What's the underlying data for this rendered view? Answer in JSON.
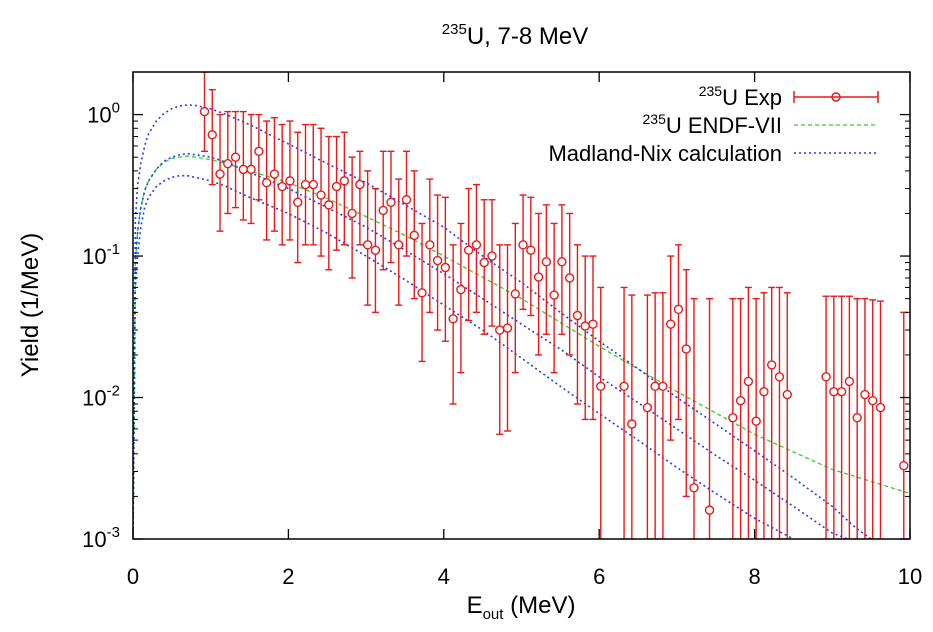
{
  "chart_data": {
    "type": "scatter",
    "title": {
      "sup": "235",
      "main": "U, 7-8 MeV"
    },
    "xlabel": {
      "main": "E",
      "sub": "out",
      "unit": " (MeV)"
    },
    "ylabel": "Yield (1/MeV)",
    "xlim": [
      0,
      10
    ],
    "ylim": [
      0.001,
      2
    ],
    "yscale": "log",
    "grid": false,
    "legend_position": "top-right",
    "x_ticks": [
      {
        "value": 0,
        "label": "0"
      },
      {
        "value": 2,
        "label": "2"
      },
      {
        "value": 4,
        "label": "4"
      },
      {
        "value": 6,
        "label": "6"
      },
      {
        "value": 8,
        "label": "8"
      },
      {
        "value": 10,
        "label": "10"
      }
    ],
    "y_ticks": [
      {
        "value": 1,
        "base": "10",
        "exp": "0"
      },
      {
        "value": 0.1,
        "base": "10",
        "exp": "-1"
      },
      {
        "value": 0.01,
        "base": "10",
        "exp": "-2"
      },
      {
        "value": 0.001,
        "base": "10",
        "exp": "-3"
      }
    ],
    "series": [
      {
        "name": {
          "sup": "235",
          "main": "U Exp"
        },
        "style": "points-errorbars",
        "color": "#e8191a",
        "points": [
          [
            0.92,
            1.05,
            0.55,
            2.0
          ],
          [
            1.02,
            0.72,
            0.32,
            1.5
          ],
          [
            1.12,
            0.38,
            0.15,
            1.0
          ],
          [
            1.22,
            0.45,
            0.2,
            1.05
          ],
          [
            1.32,
            0.5,
            0.22,
            1.05
          ],
          [
            1.42,
            0.41,
            0.18,
            1.05
          ],
          [
            1.52,
            0.41,
            0.17,
            1.0
          ],
          [
            1.62,
            0.55,
            0.25,
            1.0
          ],
          [
            1.72,
            0.33,
            0.13,
            0.9
          ],
          [
            1.82,
            0.38,
            0.15,
            0.95
          ],
          [
            1.92,
            0.31,
            0.12,
            0.85
          ],
          [
            2.02,
            0.34,
            0.13,
            0.9
          ],
          [
            2.12,
            0.24,
            0.09,
            0.75
          ],
          [
            2.22,
            0.32,
            0.12,
            0.85
          ],
          [
            2.32,
            0.32,
            0.12,
            0.85
          ],
          [
            2.42,
            0.27,
            0.1,
            0.8
          ],
          [
            2.52,
            0.23,
            0.08,
            0.7
          ],
          [
            2.62,
            0.31,
            0.11,
            0.7
          ],
          [
            2.72,
            0.34,
            0.12,
            0.75
          ],
          [
            2.82,
            0.2,
            0.07,
            0.5
          ],
          [
            2.92,
            0.32,
            0.12,
            0.55
          ],
          [
            3.02,
            0.12,
            0.045,
            0.4
          ],
          [
            3.12,
            0.11,
            0.04,
            0.3
          ],
          [
            3.22,
            0.21,
            0.08,
            0.55
          ],
          [
            3.32,
            0.24,
            0.09,
            0.55
          ],
          [
            3.42,
            0.12,
            0.045,
            0.35
          ],
          [
            3.52,
            0.25,
            0.1,
            0.55
          ],
          [
            3.62,
            0.14,
            0.05,
            0.4
          ],
          [
            3.72,
            0.055,
            0.018,
            0.17
          ],
          [
            3.82,
            0.12,
            0.04,
            0.35
          ],
          [
            3.92,
            0.093,
            0.03,
            0.27
          ],
          [
            4.02,
            0.083,
            0.025,
            0.26
          ],
          [
            4.12,
            0.036,
            0.009,
            0.12
          ],
          [
            4.22,
            0.058,
            0.015,
            0.17
          ],
          [
            4.32,
            0.11,
            0.035,
            0.3
          ],
          [
            4.42,
            0.12,
            0.04,
            0.32
          ],
          [
            4.52,
            0.09,
            0.028,
            0.25
          ],
          [
            4.62,
            0.1,
            0.032,
            0.25
          ],
          [
            4.72,
            0.03,
            0.0055,
            0.12
          ],
          [
            4.82,
            0.031,
            0.0058,
            0.12
          ],
          [
            4.92,
            0.054,
            0.015,
            0.17
          ],
          [
            5.02,
            0.12,
            0.042,
            0.27
          ],
          [
            5.12,
            0.11,
            0.038,
            0.26
          ],
          [
            5.22,
            0.071,
            0.02,
            0.2
          ],
          [
            5.32,
            0.091,
            0.028,
            0.23
          ],
          [
            5.42,
            0.053,
            0.015,
            0.17
          ],
          [
            5.52,
            0.091,
            0.028,
            0.23
          ],
          [
            5.62,
            0.07,
            0.02,
            0.2
          ],
          [
            5.72,
            0.038,
            0.009,
            0.12
          ],
          [
            5.82,
            0.032,
            0.007,
            0.1
          ],
          [
            5.92,
            0.033,
            0.007,
            0.1
          ],
          [
            6.02,
            0.012,
            0.001,
            0.06
          ],
          [
            6.32,
            0.012,
            0.001,
            0.06
          ],
          [
            6.42,
            0.0065,
            0.001,
            0.053
          ],
          [
            6.62,
            0.0085,
            0.001,
            0.053
          ],
          [
            6.72,
            0.012,
            0.001,
            0.055
          ],
          [
            6.82,
            0.012,
            0.001,
            0.055
          ],
          [
            6.92,
            0.033,
            0.005,
            0.1
          ],
          [
            7.02,
            0.042,
            0.007,
            0.12
          ],
          [
            7.12,
            0.022,
            0.002,
            0.08
          ],
          [
            7.22,
            0.0023,
            0.001,
            0.05
          ],
          [
            7.42,
            0.0016,
            0.001,
            0.05
          ],
          [
            7.72,
            0.0072,
            0.001,
            0.05
          ],
          [
            7.82,
            0.0095,
            0.001,
            0.05
          ],
          [
            7.92,
            0.013,
            0.001,
            0.06
          ],
          [
            8.02,
            0.0068,
            0.001,
            0.05
          ],
          [
            8.12,
            0.011,
            0.001,
            0.055
          ],
          [
            8.22,
            0.017,
            0.001,
            0.06
          ],
          [
            8.32,
            0.014,
            0.001,
            0.06
          ],
          [
            8.42,
            0.0105,
            0.001,
            0.055
          ],
          [
            8.92,
            0.014,
            0.001,
            0.052
          ],
          [
            9.02,
            0.011,
            0.001,
            0.052
          ],
          [
            9.12,
            0.011,
            0.001,
            0.052
          ],
          [
            9.22,
            0.013,
            0.001,
            0.052
          ],
          [
            9.32,
            0.0072,
            0.001,
            0.05
          ],
          [
            9.42,
            0.0105,
            0.001,
            0.05
          ],
          [
            9.52,
            0.0095,
            0.001,
            0.049
          ],
          [
            9.62,
            0.0085,
            0.001,
            0.048
          ],
          [
            9.92,
            0.0033,
            0.001,
            0.04
          ]
        ]
      },
      {
        "name": {
          "sup": "235",
          "main": "U ENDF-VII"
        },
        "style": "dashed-line",
        "color": "#2ecf2e",
        "points": [
          [
            0,
            0.001
          ],
          [
            0.03,
            0.09
          ],
          [
            0.06,
            0.15
          ],
          [
            0.1,
            0.22
          ],
          [
            0.15,
            0.29
          ],
          [
            0.2,
            0.34
          ],
          [
            0.3,
            0.41
          ],
          [
            0.4,
            0.46
          ],
          [
            0.5,
            0.49
          ],
          [
            0.6,
            0.5
          ],
          [
            0.7,
            0.51
          ],
          [
            0.8,
            0.5
          ],
          [
            1,
            0.48
          ],
          [
            1.2,
            0.45
          ],
          [
            1.5,
            0.4
          ],
          [
            2,
            0.33
          ],
          [
            2.5,
            0.255
          ],
          [
            3,
            0.19
          ],
          [
            3.5,
            0.14
          ],
          [
            4,
            0.1
          ],
          [
            5,
            0.05
          ],
          [
            6,
            0.023
          ],
          [
            7,
            0.011
          ],
          [
            8,
            0.0055
          ],
          [
            9,
            0.0031
          ],
          [
            10,
            0.0021
          ]
        ]
      },
      {
        "name": "Madland-Nix calculation",
        "style": "dotted-line",
        "color": "#1f3fe8",
        "curves": [
          [
            [
              0,
              0.001
            ],
            [
              0.03,
              0.18
            ],
            [
              0.06,
              0.32
            ],
            [
              0.1,
              0.45
            ],
            [
              0.15,
              0.6
            ],
            [
              0.2,
              0.73
            ],
            [
              0.3,
              0.9
            ],
            [
              0.4,
              1.02
            ],
            [
              0.5,
              1.1
            ],
            [
              0.6,
              1.15
            ],
            [
              0.7,
              1.17
            ],
            [
              0.8,
              1.16
            ],
            [
              1,
              1.1
            ],
            [
              1.2,
              1.0
            ],
            [
              1.5,
              0.85
            ],
            [
              2,
              0.62
            ],
            [
              2.5,
              0.45
            ],
            [
              3,
              0.33
            ],
            [
              3.5,
              0.23
            ],
            [
              4,
              0.16
            ],
            [
              4.5,
              0.1
            ],
            [
              5,
              0.065
            ],
            [
              5.5,
              0.04
            ],
            [
              6,
              0.025
            ],
            [
              6.5,
              0.016
            ],
            [
              7,
              0.01
            ],
            [
              7.5,
              0.0065
            ],
            [
              8,
              0.0042
            ],
            [
              8.5,
              0.0027
            ],
            [
              9,
              0.0017
            ],
            [
              9.3,
              0.0012
            ],
            [
              9.5,
              0.001
            ]
          ],
          [
            [
              0,
              0.001
            ],
            [
              0.03,
              0.09
            ],
            [
              0.06,
              0.15
            ],
            [
              0.1,
              0.22
            ],
            [
              0.15,
              0.29
            ],
            [
              0.2,
              0.34
            ],
            [
              0.3,
              0.41
            ],
            [
              0.4,
              0.47
            ],
            [
              0.5,
              0.5
            ],
            [
              0.6,
              0.52
            ],
            [
              0.7,
              0.53
            ],
            [
              0.8,
              0.52
            ],
            [
              1,
              0.5
            ],
            [
              1.2,
              0.46
            ],
            [
              1.5,
              0.39
            ],
            [
              2,
              0.3
            ],
            [
              2.5,
              0.22
            ],
            [
              3,
              0.16
            ],
            [
              3.5,
              0.11
            ],
            [
              4,
              0.075
            ],
            [
              4.5,
              0.05
            ],
            [
              5,
              0.033
            ],
            [
              5.5,
              0.022
            ],
            [
              6,
              0.014
            ],
            [
              6.5,
              0.0092
            ],
            [
              7,
              0.006
            ],
            [
              7.5,
              0.0039
            ],
            [
              8,
              0.0026
            ],
            [
              8.5,
              0.0017
            ],
            [
              9,
              0.0011
            ],
            [
              9.2,
              0.001
            ]
          ],
          [
            [
              0,
              0.001
            ],
            [
              0.03,
              0.06
            ],
            [
              0.06,
              0.1
            ],
            [
              0.1,
              0.16
            ],
            [
              0.15,
              0.22
            ],
            [
              0.2,
              0.26
            ],
            [
              0.3,
              0.31
            ],
            [
              0.4,
              0.34
            ],
            [
              0.5,
              0.36
            ],
            [
              0.6,
              0.37
            ],
            [
              0.7,
              0.37
            ],
            [
              0.8,
              0.36
            ],
            [
              1,
              0.34
            ],
            [
              1.2,
              0.31
            ],
            [
              1.5,
              0.26
            ],
            [
              2,
              0.2
            ],
            [
              2.5,
              0.145
            ],
            [
              3,
              0.1
            ],
            [
              3.5,
              0.068
            ],
            [
              4,
              0.045
            ],
            [
              4.5,
              0.03
            ],
            [
              5,
              0.019
            ],
            [
              5.5,
              0.012
            ],
            [
              6,
              0.0077
            ],
            [
              6.5,
              0.005
            ],
            [
              7,
              0.0032
            ],
            [
              7.5,
              0.0021
            ],
            [
              8,
              0.0014
            ],
            [
              8.5,
              0.001
            ]
          ]
        ]
      }
    ]
  }
}
